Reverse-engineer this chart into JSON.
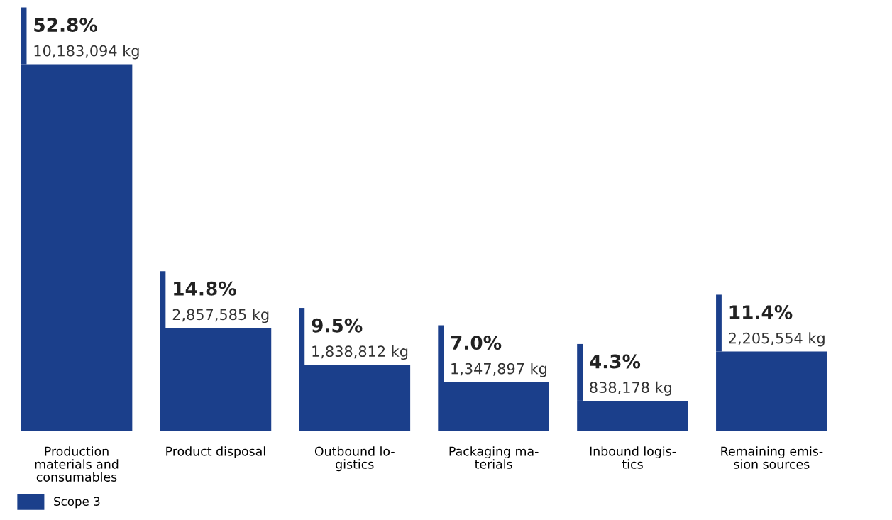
{
  "chart_data": {
    "type": "bar",
    "categories": [
      "Production\nmaterials and\nconsumables",
      "Product disposal",
      "Outbound lo-\ngistics",
      "Packaging ma-\nterials",
      "Inbound logis-\ntics",
      "Remaining emis-\nsion sources"
    ],
    "series": [
      {
        "name": "Scope 3",
        "color": "#1b3f8b",
        "values": [
          52.8,
          14.8,
          9.5,
          7.0,
          4.3,
          11.4
        ],
        "value_labels": [
          "52.8%\n10,183,094 kg",
          "14.8%\n2,857,585 kg",
          "9.5%\n1,838,812 kg",
          "7.0%\n1,347,897 kg",
          "4.3%\n838,178 kg",
          "11.4%\n2,205,554 kg"
        ]
      }
    ],
    "legend": "bottom left"
  }
}
